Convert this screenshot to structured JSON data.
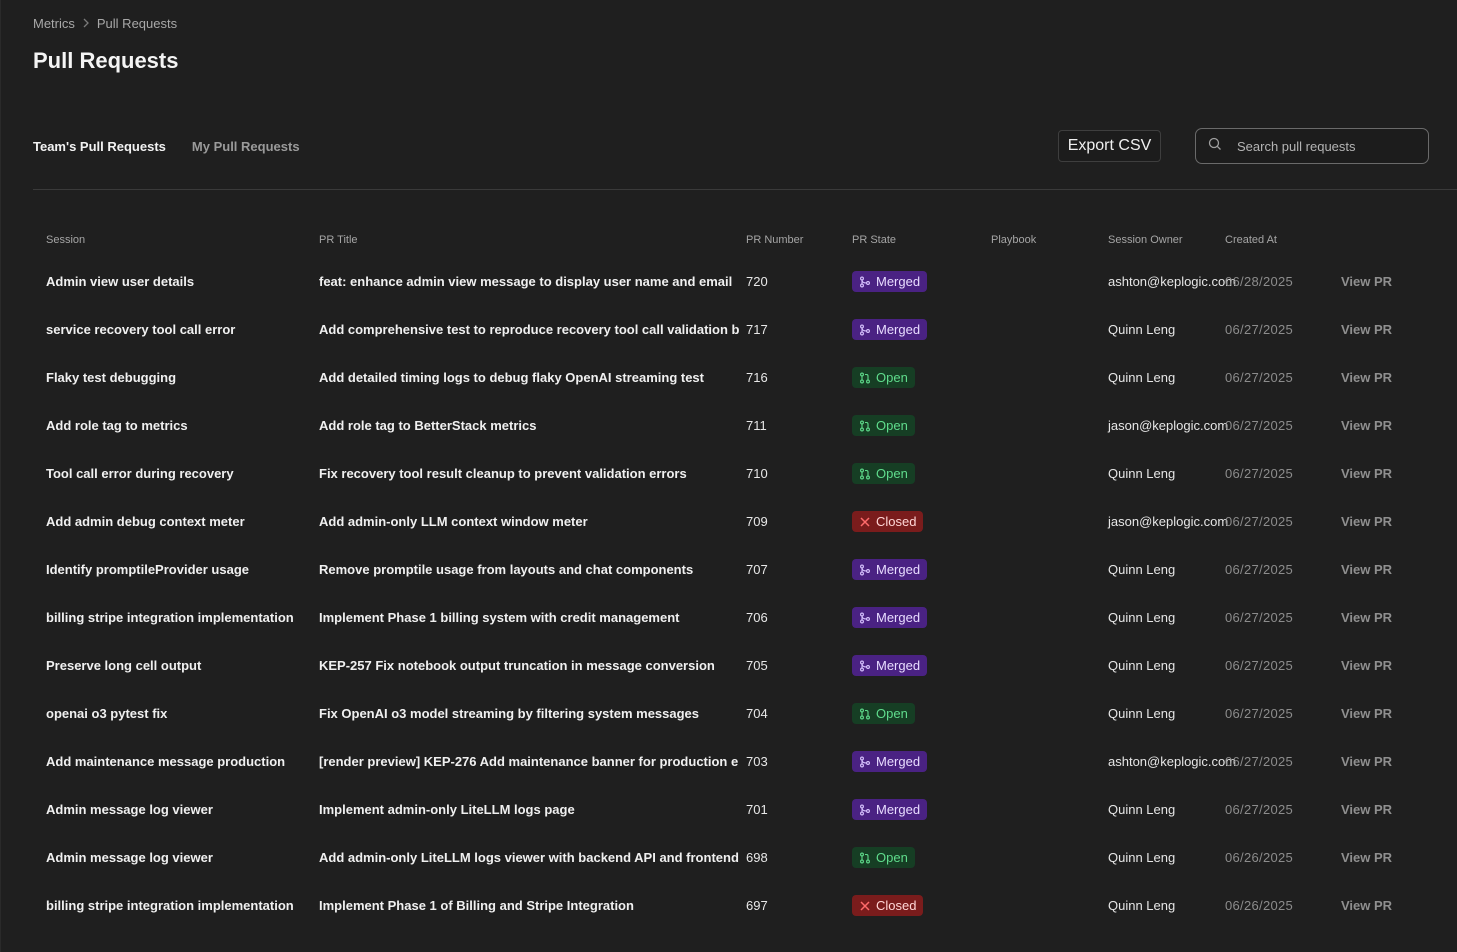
{
  "breadcrumb": {
    "root": "Metrics",
    "current": "Pull Requests"
  },
  "page_title": "Pull Requests",
  "tabs": [
    {
      "label": "Team's Pull Requests",
      "active": true
    },
    {
      "label": "My Pull Requests",
      "active": false
    }
  ],
  "toolbar": {
    "export_label": "Export CSV",
    "search_placeholder": "Search pull requests",
    "search_value": ""
  },
  "columns": {
    "session": "Session",
    "title": "PR Title",
    "number": "PR Number",
    "state": "PR State",
    "playbook": "Playbook",
    "owner": "Session Owner",
    "created": "Created At"
  },
  "state_colors": {
    "Merged": "#4a2283",
    "Open": "#163e24",
    "Closed": "#7a1c1c"
  },
  "rows": [
    {
      "session": "Admin view user details",
      "title": "feat: enhance admin view message to display user name and email",
      "number": "720",
      "state": "Merged",
      "playbook": "",
      "owner": "ashton@keplogic.com",
      "created": "06/28/2025",
      "view": "View PR"
    },
    {
      "session": "service recovery tool call error",
      "title": "Add comprehensive test to reproduce recovery tool call validation b",
      "number": "717",
      "state": "Merged",
      "playbook": "",
      "owner": "Quinn Leng",
      "created": "06/27/2025",
      "view": "View PR"
    },
    {
      "session": "Flaky test debugging",
      "title": "Add detailed timing logs to debug flaky OpenAI streaming test",
      "number": "716",
      "state": "Open",
      "playbook": "",
      "owner": "Quinn Leng",
      "created": "06/27/2025",
      "view": "View PR"
    },
    {
      "session": "Add role tag to metrics",
      "title": "Add role tag to BetterStack metrics",
      "number": "711",
      "state": "Open",
      "playbook": "",
      "owner": "jason@keplogic.com",
      "created": "06/27/2025",
      "view": "View PR"
    },
    {
      "session": "Tool call error during recovery",
      "title": "Fix recovery tool result cleanup to prevent validation errors",
      "number": "710",
      "state": "Open",
      "playbook": "",
      "owner": "Quinn Leng",
      "created": "06/27/2025",
      "view": "View PR"
    },
    {
      "session": "Add admin debug context meter",
      "title": "Add admin-only LLM context window meter",
      "number": "709",
      "state": "Closed",
      "playbook": "",
      "owner": "jason@keplogic.com",
      "created": "06/27/2025",
      "view": "View PR"
    },
    {
      "session": "Identify promptileProvider usage",
      "title": "Remove promptile usage from layouts and chat components",
      "number": "707",
      "state": "Merged",
      "playbook": "",
      "owner": "Quinn Leng",
      "created": "06/27/2025",
      "view": "View PR"
    },
    {
      "session": "billing stripe integration implementation",
      "title": "Implement Phase 1 billing system with credit management",
      "number": "706",
      "state": "Merged",
      "playbook": "",
      "owner": "Quinn Leng",
      "created": "06/27/2025",
      "view": "View PR"
    },
    {
      "session": "Preserve long cell output",
      "title": "KEP-257 Fix notebook output truncation in message conversion",
      "number": "705",
      "state": "Merged",
      "playbook": "",
      "owner": "Quinn Leng",
      "created": "06/27/2025",
      "view": "View PR"
    },
    {
      "session": "openai o3 pytest fix",
      "title": "Fix OpenAI o3 model streaming by filtering system messages",
      "number": "704",
      "state": "Open",
      "playbook": "",
      "owner": "Quinn Leng",
      "created": "06/27/2025",
      "view": "View PR"
    },
    {
      "session": "Add maintenance message production",
      "title": "[render preview] KEP-276 Add maintenance banner for production e",
      "number": "703",
      "state": "Merged",
      "playbook": "",
      "owner": "ashton@keplogic.com",
      "created": "06/27/2025",
      "view": "View PR"
    },
    {
      "session": "Admin message log viewer",
      "title": "Implement admin-only LiteLLM logs page",
      "number": "701",
      "state": "Merged",
      "playbook": "",
      "owner": "Quinn Leng",
      "created": "06/27/2025",
      "view": "View PR"
    },
    {
      "session": "Admin message log viewer",
      "title": "Add admin-only LiteLLM logs viewer with backend API and frontend",
      "number": "698",
      "state": "Open",
      "playbook": "",
      "owner": "Quinn Leng",
      "created": "06/26/2025",
      "view": "View PR"
    },
    {
      "session": "billing stripe integration implementation",
      "title": "Implement Phase 1 of Billing and Stripe Integration",
      "number": "697",
      "state": "Closed",
      "playbook": "",
      "owner": "Quinn Leng",
      "created": "06/26/2025",
      "view": "View PR"
    }
  ]
}
